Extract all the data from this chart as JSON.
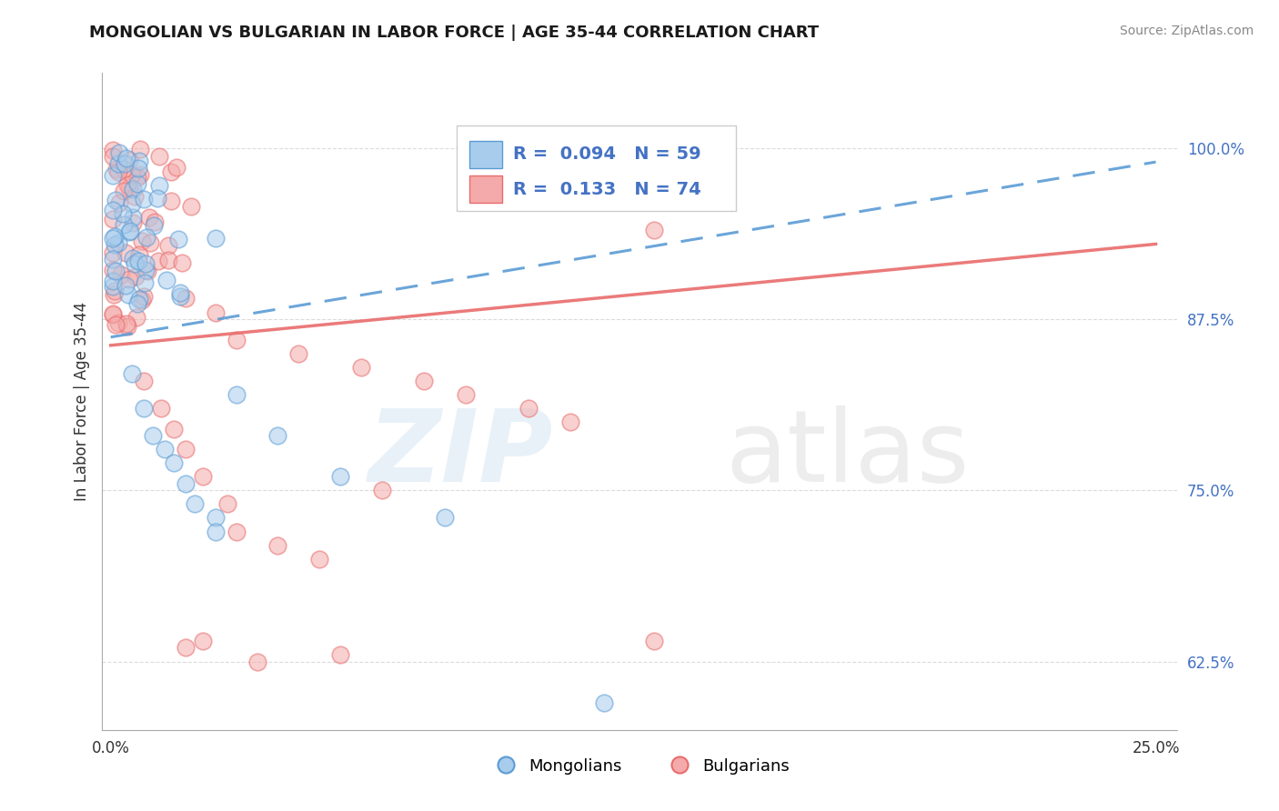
{
  "title": "MONGOLIAN VS BULGARIAN IN LABOR FORCE | AGE 35-44 CORRELATION CHART",
  "source": "Source: ZipAtlas.com",
  "ylabel": "In Labor Force | Age 35-44",
  "xlim": [
    -0.002,
    0.255
  ],
  "ylim": [
    0.575,
    1.055
  ],
  "xtick_positions": [
    0.0,
    0.25
  ],
  "xticklabels": [
    "0.0%",
    "25.0%"
  ],
  "ytick_positions": [
    0.625,
    0.75,
    0.875,
    1.0
  ],
  "yticklabels": [
    "62.5%",
    "75.0%",
    "87.5%",
    "100.0%"
  ],
  "mongolian_fill": "#a8ccec",
  "mongolian_edge": "#5b9bd5",
  "bulgarian_fill": "#f4aaaa",
  "bulgarian_edge": "#e96c6c",
  "trend_mongolian_color": "#5b9bd5",
  "trend_bulgarian_color": "#e96c6c",
  "r_mongolian": 0.094,
  "n_mongolian": 59,
  "r_bulgarian": 0.133,
  "n_bulgarian": 74,
  "legend_label_mongolian": "Mongolians",
  "legend_label_bulgarian": "Bulgarians",
  "ytick_color": "#4472C4",
  "xtick_color": "#333333",
  "trend_mong_y0": 0.862,
  "trend_mong_y1": 0.99,
  "trend_bulg_y0": 0.856,
  "trend_bulg_y1": 0.93
}
